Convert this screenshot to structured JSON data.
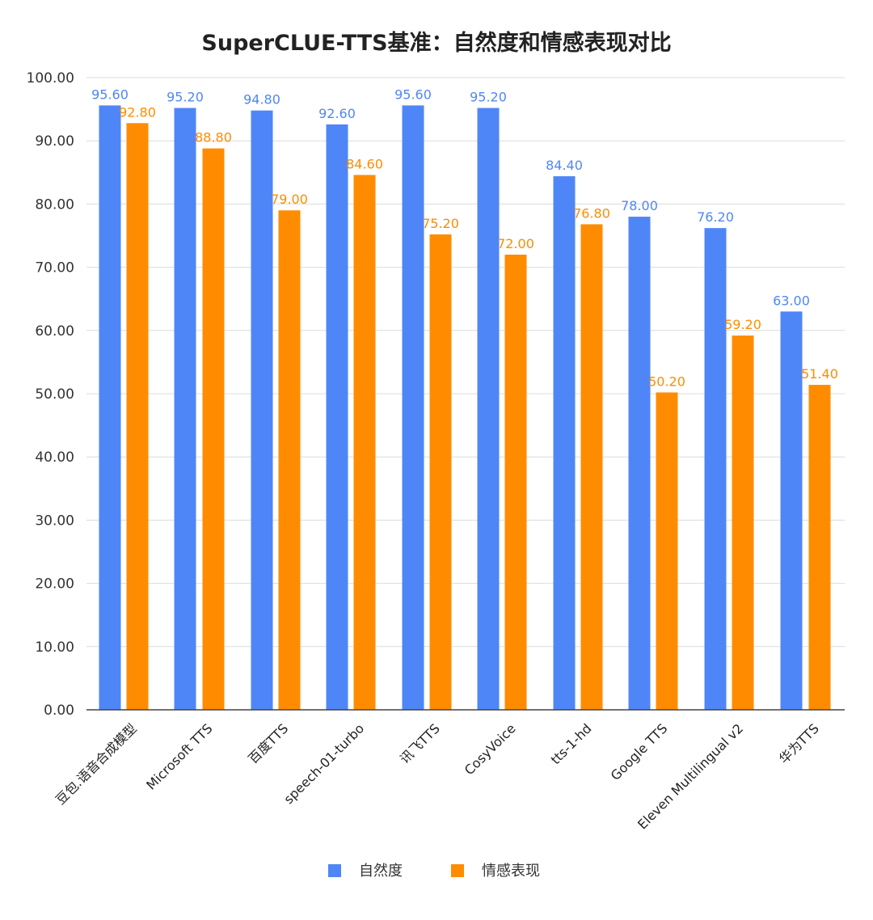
{
  "chart_data": {
    "type": "bar",
    "title": "SuperCLUE-TTS基准：自然度和情感表现对比",
    "xlabel": "",
    "ylabel": "",
    "categories": [
      "豆包.语音合成模型",
      "Microsoft TTS",
      "百度TTS",
      "speech-01-turbo",
      "讯飞TTS",
      "CosyVoice",
      "tts-1-hd",
      "Google TTS",
      "Eleven Multilingual v2",
      "华为TTS"
    ],
    "series": [
      {
        "name": "自然度",
        "color": "#4F86F7",
        "values": [
          95.6,
          95.2,
          94.8,
          92.6,
          95.6,
          95.2,
          84.4,
          78.0,
          76.2,
          63.0
        ]
      },
      {
        "name": "情感表现",
        "color": "#FF8C00",
        "values": [
          92.8,
          88.8,
          79.0,
          84.6,
          75.2,
          72.0,
          76.8,
          50.2,
          59.2,
          51.4
        ]
      }
    ],
    "ylim": [
      0,
      100
    ],
    "yticks": [
      0,
      10,
      20,
      30,
      40,
      50,
      60,
      70,
      80,
      90,
      100
    ],
    "tick_format_decimals": 2,
    "data_labels": true,
    "grid": true,
    "legend_position": "bottom"
  }
}
